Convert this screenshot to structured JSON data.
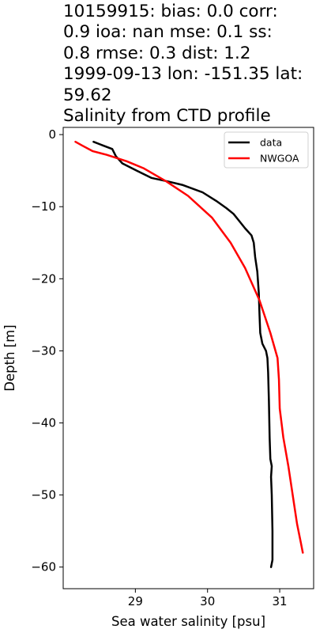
{
  "title": {
    "lines": [
      "10159915: bias: 0.0  corr:",
      "0.9  ioa: nan  mse: 0.1  ss:",
      "0.8  rmse: 0.3  dist: 1.2",
      "1999-09-13 lon: -151.35 lat:",
      "59.62",
      "Salinity from CTD profile"
    ]
  },
  "chart_data": {
    "type": "line",
    "xlabel": "Sea water salinity [psu]",
    "ylabel": "Depth [m]",
    "xlim": [
      28.0,
      31.47
    ],
    "ylim": [
      -63,
      1
    ],
    "xticks": [
      29,
      30,
      31
    ],
    "yticks": [
      0,
      -10,
      -20,
      -30,
      -40,
      -50,
      -60
    ],
    "ytick_labels": [
      "0",
      "−10",
      "−20",
      "−30",
      "−40",
      "−50",
      "−60"
    ],
    "grid": false,
    "legend_position": "top-right",
    "series": [
      {
        "name": "data",
        "color": "#000000",
        "points": [
          [
            28.42,
            -1
          ],
          [
            28.55,
            -1.5
          ],
          [
            28.68,
            -2
          ],
          [
            28.73,
            -3
          ],
          [
            28.82,
            -4
          ],
          [
            29.02,
            -5
          ],
          [
            29.22,
            -6
          ],
          [
            29.45,
            -6.5
          ],
          [
            29.66,
            -7
          ],
          [
            29.93,
            -8
          ],
          [
            30.12,
            -9.2
          ],
          [
            30.26,
            -10.2
          ],
          [
            30.36,
            -11
          ],
          [
            30.44,
            -12
          ],
          [
            30.52,
            -13
          ],
          [
            30.61,
            -14
          ],
          [
            30.64,
            -15
          ],
          [
            30.66,
            -17
          ],
          [
            30.69,
            -19
          ],
          [
            30.71,
            -22
          ],
          [
            30.72,
            -25
          ],
          [
            30.73,
            -27.5
          ],
          [
            30.76,
            -29
          ],
          [
            30.81,
            -30
          ],
          [
            30.83,
            -31
          ],
          [
            30.84,
            -33
          ],
          [
            30.85,
            -37
          ],
          [
            30.86,
            -42
          ],
          [
            30.87,
            -45
          ],
          [
            30.89,
            -46
          ],
          [
            30.88,
            -47.5
          ],
          [
            30.89,
            -50
          ],
          [
            30.9,
            -55
          ],
          [
            30.9,
            -59
          ],
          [
            30.88,
            -60
          ]
        ]
      },
      {
        "name": "NWGOA",
        "color": "#ff0000",
        "points": [
          [
            28.17,
            -1
          ],
          [
            28.26,
            -1.5
          ],
          [
            28.41,
            -2.3
          ],
          [
            28.6,
            -2.8
          ],
          [
            28.88,
            -3.7
          ],
          [
            29.12,
            -4.7
          ],
          [
            29.43,
            -6.5
          ],
          [
            29.73,
            -8.5
          ],
          [
            30.06,
            -11.5
          ],
          [
            30.32,
            -15
          ],
          [
            30.52,
            -18.5
          ],
          [
            30.72,
            -23
          ],
          [
            30.87,
            -27.5
          ],
          [
            30.97,
            -31
          ],
          [
            30.99,
            -34
          ],
          [
            31.0,
            -38
          ],
          [
            31.05,
            -42
          ],
          [
            31.12,
            -46
          ],
          [
            31.18,
            -50
          ],
          [
            31.24,
            -54
          ],
          [
            31.29,
            -56.5
          ],
          [
            31.32,
            -58
          ]
        ]
      }
    ]
  }
}
